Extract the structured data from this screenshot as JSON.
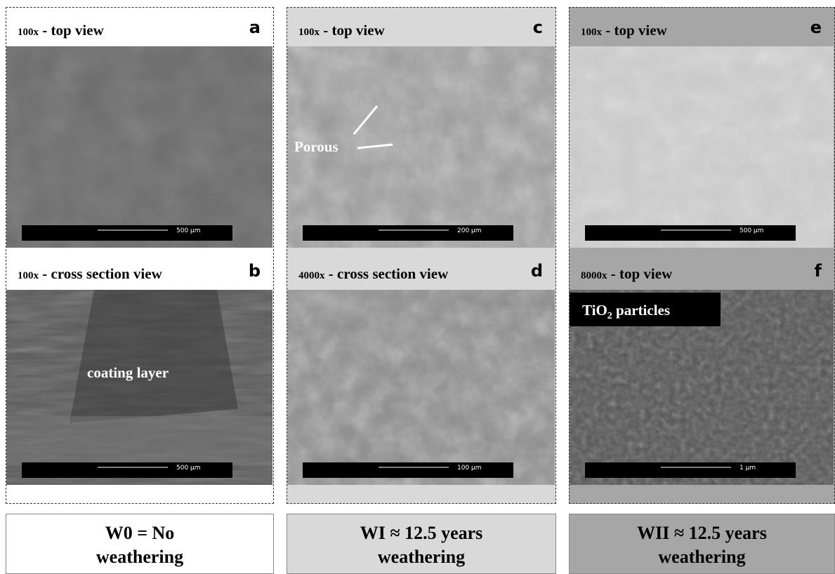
{
  "columns": [
    {
      "panels": [
        {
          "magnification": "100x",
          "view": "- top view",
          "letter": "a",
          "scale_bar": "500 µm"
        },
        {
          "magnification": "100x",
          "view": "- cross section view",
          "letter": "b",
          "scale_bar": "500 µm",
          "annotation": "coating layer"
        }
      ],
      "footer": [
        "W0 = No",
        "weathering"
      ]
    },
    {
      "panels": [
        {
          "magnification": "100x",
          "view": "- top view",
          "letter": "c",
          "scale_bar": "200 µm",
          "annotation": "Porous"
        },
        {
          "magnification": "4000x",
          "view": "- cross section view",
          "letter": "d",
          "scale_bar": "100 µm"
        }
      ],
      "footer": [
        "WI  ≈ 12.5 years",
        "weathering"
      ]
    },
    {
      "panels": [
        {
          "magnification": "100x",
          "view": "- top view",
          "letter": "e",
          "scale_bar": "500 µm"
        },
        {
          "magnification": "8000x",
          "view": "- top view",
          "letter": "f",
          "scale_bar": "1 µm",
          "annotation_parts": [
            "TiO",
            "2",
            " particles"
          ]
        }
      ],
      "footer": [
        "WII ≈ 12.5 years",
        "weathering"
      ]
    }
  ]
}
